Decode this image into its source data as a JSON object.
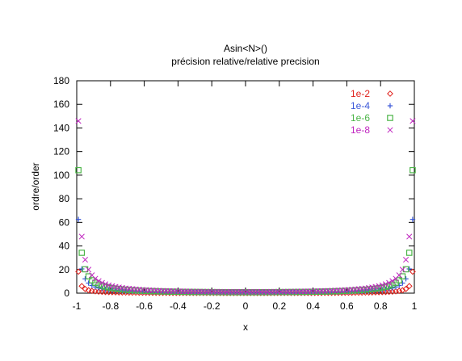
{
  "chart_data": {
    "type": "scatter",
    "title": "Asin<N>()",
    "subtitle": "précision relative/relative precision",
    "xlabel": "x",
    "ylabel": "ordre/order",
    "xlim": [
      -1,
      1
    ],
    "ylim": [
      0,
      180
    ],
    "grid": false,
    "legend_position": "top-right",
    "x_ticks": [
      "-1",
      "-0.8",
      "-0.6",
      "-0.4",
      "-0.2",
      "0",
      "0.2",
      "0.4",
      "0.6",
      "0.8",
      "1"
    ],
    "y_ticks": [
      "0",
      "20",
      "40",
      "60",
      "80",
      "100",
      "120",
      "140",
      "160",
      "180"
    ],
    "series": [
      {
        "name": "1e-2",
        "marker": "diamond",
        "color": "#e0201b",
        "k": 0.175,
        "cap": 41
      },
      {
        "name": "1e-4",
        "marker": "plus",
        "color": "#3b58d8",
        "k": 0.6,
        "cap": 100
      },
      {
        "name": "1e-6",
        "marker": "square",
        "color": "#4cb548",
        "k": 1.0,
        "cap": 173
      },
      {
        "name": "1e-8",
        "marker": "cross",
        "color": "#c026c0",
        "k": 1.4,
        "cap": 173
      }
    ]
  }
}
